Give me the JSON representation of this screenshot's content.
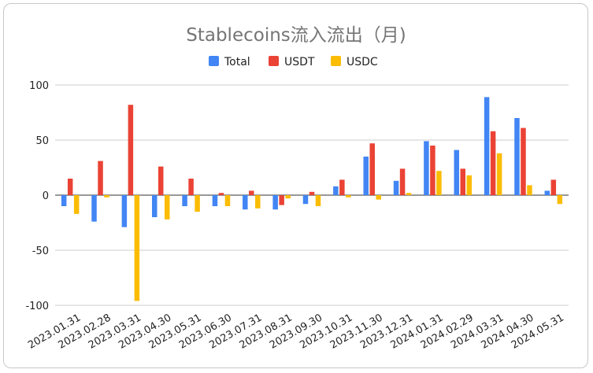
{
  "chart_data": {
    "type": "bar",
    "title": "Stablecoins流入流出（月)",
    "xlabel": "",
    "ylabel": "",
    "ylim": [
      -100,
      100
    ],
    "yticks": [
      -100,
      -50,
      0,
      50,
      100
    ],
    "grid": true,
    "legend_position": "top",
    "categories": [
      "2023.01.31",
      "2023.02.28",
      "2023.03.31",
      "2023.04.30",
      "2023.05.31",
      "2023.06.30",
      "2023.07.31",
      "2023.08.31",
      "2023.09.30",
      "2023.10.31",
      "2023.11.30",
      "2023.12.31",
      "2024.01.31",
      "2024.02.29",
      "2024.03.31",
      "2024.04.30",
      "2024.05.31"
    ],
    "series": [
      {
        "name": "Total",
        "color": "#4285f4",
        "values": [
          -10,
          -24,
          -29,
          -20,
          -10,
          -10,
          -13,
          -13,
          -8,
          8,
          35,
          13,
          49,
          41,
          89,
          70,
          4
        ]
      },
      {
        "name": "USDT",
        "color": "#ea4335",
        "values": [
          15,
          31,
          82,
          26,
          15,
          2,
          4,
          -9,
          3,
          14,
          47,
          24,
          45,
          24,
          58,
          61,
          14
        ]
      },
      {
        "name": "USDC",
        "color": "#fbbc04",
        "values": [
          -17,
          -2,
          -96,
          -22,
          -15,
          -10,
          -12,
          -3,
          -10,
          -2,
          -4,
          2,
          22,
          18,
          38,
          9,
          -8
        ]
      }
    ]
  }
}
